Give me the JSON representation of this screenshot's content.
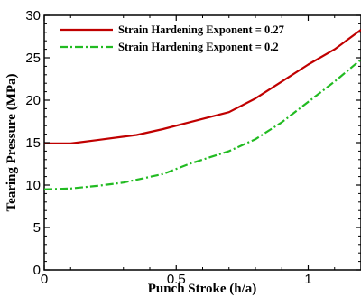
{
  "chart_data": {
    "type": "line",
    "title": "",
    "xlabel": "Punch Stroke (h/a)",
    "ylabel": "Tearing Pressure (MPa)",
    "xlim": [
      0,
      1.2
    ],
    "ylim": [
      0,
      30
    ],
    "xticks": [
      0,
      0.5,
      1
    ],
    "xtick_labels": [
      "0",
      "0.5",
      "1"
    ],
    "yticks": [
      0,
      5,
      10,
      15,
      20,
      25,
      30
    ],
    "ytick_labels": [
      "0",
      "5",
      "10",
      "15",
      "20",
      "25",
      "30"
    ],
    "grid": false,
    "legend_position": "top-right",
    "series": [
      {
        "name": "Strain Hardening Exponent = 0.27",
        "color": "#c00000",
        "style": "solid",
        "x": [
          0.0,
          0.1,
          0.2,
          0.35,
          0.45,
          0.55,
          0.7,
          0.8,
          0.9,
          1.0,
          1.1,
          1.2
        ],
        "y": [
          14.9,
          14.9,
          15.3,
          15.9,
          16.6,
          17.4,
          18.6,
          20.2,
          22.2,
          24.2,
          26.0,
          28.3
        ]
      },
      {
        "name": "Strain Hardening Exponent = 0.2",
        "color": "#22bb22",
        "style": "dashdot",
        "x": [
          0.0,
          0.1,
          0.2,
          0.3,
          0.45,
          0.55,
          0.7,
          0.8,
          0.9,
          1.0,
          1.1,
          1.2
        ],
        "y": [
          9.5,
          9.6,
          9.9,
          10.3,
          11.3,
          12.5,
          14.0,
          15.4,
          17.4,
          19.8,
          22.2,
          24.8
        ]
      }
    ]
  }
}
